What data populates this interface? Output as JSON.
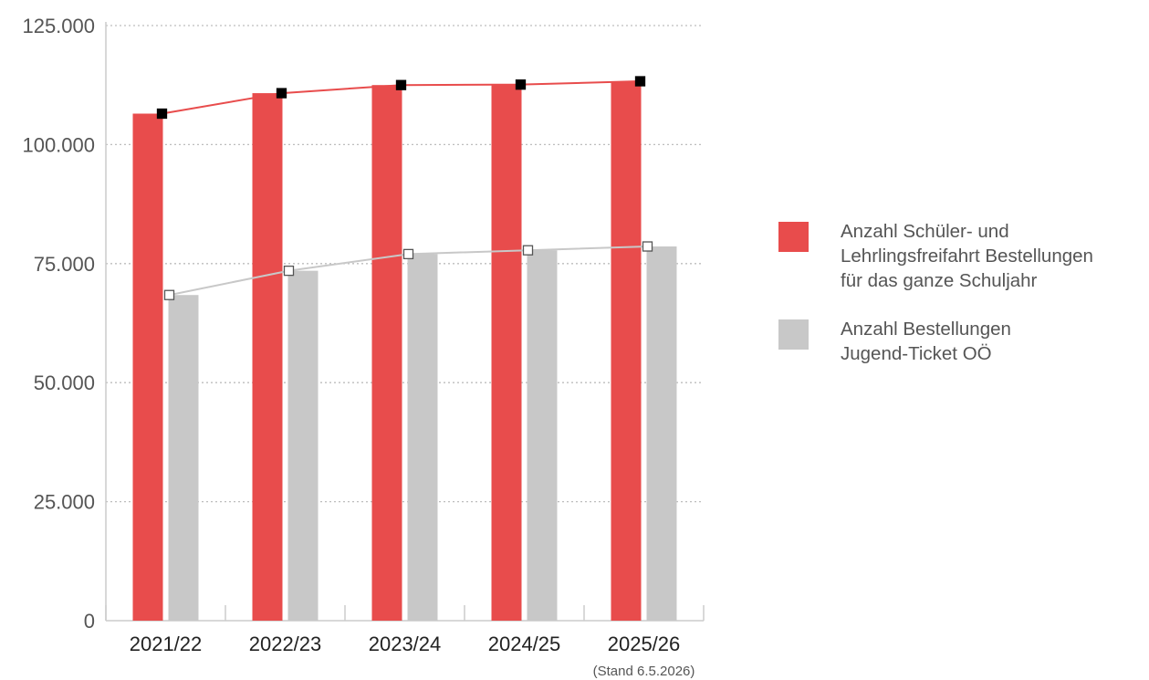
{
  "chart_data": {
    "type": "bar",
    "categories": [
      "2021/22",
      "2022/23",
      "2023/24",
      "2024/25",
      "2025/26"
    ],
    "category_note": {
      "index": 4,
      "text": "(Stand 6.5.2026)"
    },
    "series": [
      {
        "name_lines": [
          "Anzahl Schüler- und",
          "Lehrlingsfreifahrt Bestellungen",
          "für das ganze Schuljahr"
        ],
        "values": [
          106500,
          110800,
          112500,
          112600,
          113300
        ],
        "color": "#e84c4c",
        "line_color": "#e84c4c",
        "marker_fill": "#000000"
      },
      {
        "name_lines": [
          "Anzahl Bestellungen",
          "Jugend-Ticket OÖ"
        ],
        "values": [
          68400,
          73500,
          77000,
          77800,
          78600
        ],
        "color": "#c8c8c8",
        "line_color": "#c8c8c8",
        "marker_fill": "#ffffff"
      }
    ],
    "yticks": [
      0,
      25000,
      50000,
      75000,
      100000,
      125000
    ],
    "ytick_labels": [
      "0",
      "25.000",
      "50.000",
      "75.000",
      "100.000",
      "125.000"
    ],
    "ylim": [
      0,
      125000
    ],
    "grid": true,
    "legend_position": "right"
  }
}
